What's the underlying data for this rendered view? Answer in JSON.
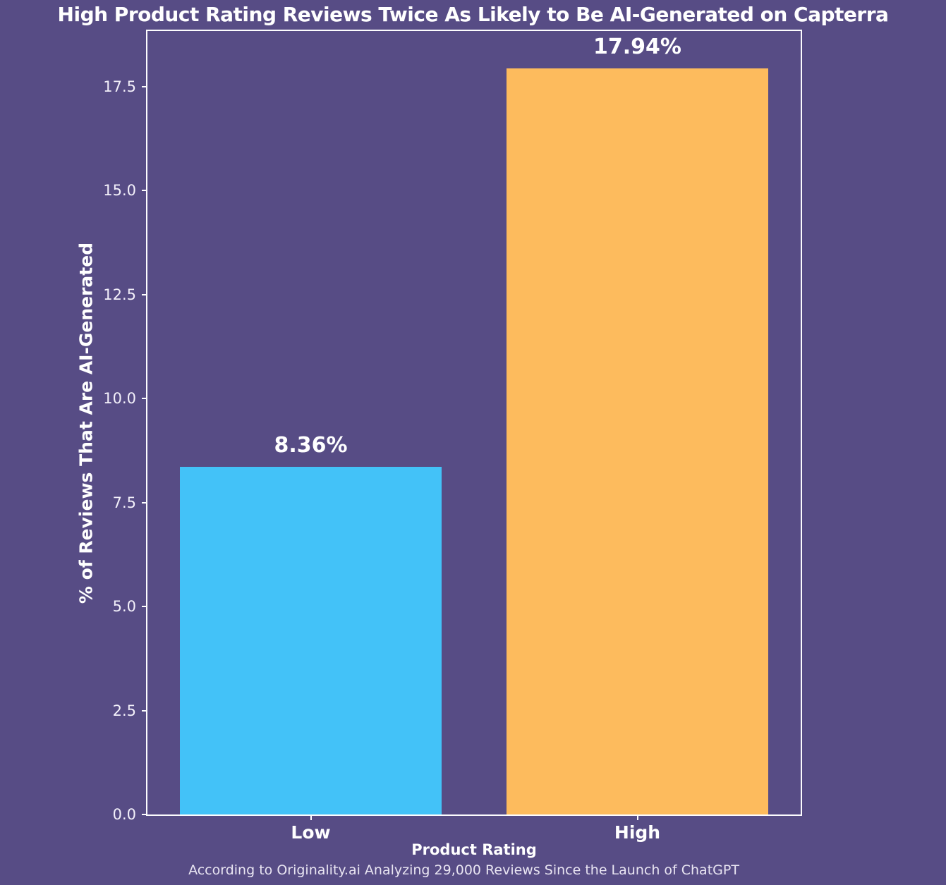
{
  "chart_data": {
    "type": "bar",
    "title": "High Product Rating Reviews Twice As Likely to Be AI-Generated on Capterra",
    "xlabel": "Product Rating",
    "ylabel": "% of Reviews That Are AI-Generated",
    "caption": "According to Originality.ai Analyzing 29,000 Reviews Since the Launch of ChatGPT",
    "categories": [
      "Low",
      "High"
    ],
    "values": [
      8.36,
      17.94
    ],
    "value_labels": [
      "8.36%",
      "17.94%"
    ],
    "bar_colors": [
      "#43C2F8",
      "#FDBB5D"
    ],
    "ylim": [
      0,
      18.84
    ],
    "yticks": [
      0.0,
      2.5,
      5.0,
      7.5,
      10.0,
      12.5,
      15.0,
      17.5
    ],
    "grid": false,
    "legend": "none",
    "bar_width_fraction": 0.8,
    "background_color": "#574C85",
    "axis_color": "#FDFCFE",
    "text_color": "#FFFFFF"
  }
}
